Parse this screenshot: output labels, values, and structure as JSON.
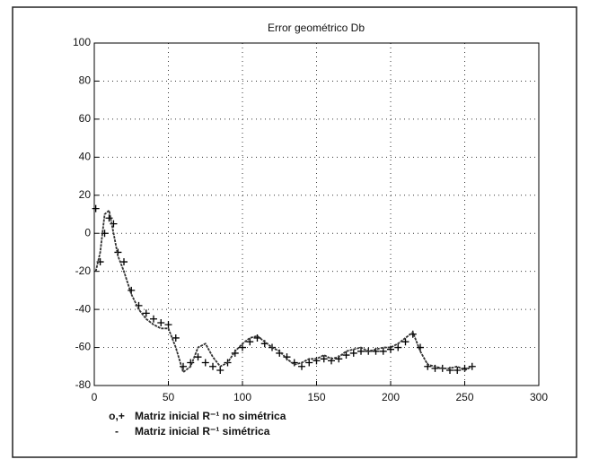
{
  "chart_data": {
    "type": "line",
    "title": "Error geométrico Db",
    "x": [
      1,
      4,
      7,
      10,
      13,
      16,
      20,
      25,
      30,
      35,
      40,
      45,
      50,
      55,
      60,
      65,
      70,
      75,
      80,
      85,
      90,
      95,
      100,
      105,
      110,
      115,
      120,
      125,
      130,
      135,
      140,
      145,
      150,
      155,
      160,
      165,
      170,
      175,
      180,
      185,
      190,
      195,
      200,
      205,
      210,
      215,
      220,
      225,
      230,
      235,
      240,
      245,
      250,
      255
    ],
    "series": [
      {
        "name": "Matriz inicial R⁻¹ no simétrica",
        "legend_symbol": "o,+",
        "marker": "+",
        "color": "#000000",
        "values": [
          13,
          -15,
          0,
          8,
          5,
          -10,
          -15,
          -30,
          -38,
          -42,
          -45,
          -47,
          -48,
          -55,
          -70,
          -68,
          -65,
          -68,
          -70,
          -72,
          -68,
          -63,
          -60,
          -57,
          -55,
          -58,
          -60,
          -63,
          -65,
          -68,
          -70,
          -68,
          -67,
          -66,
          -67,
          -66,
          -64,
          -63,
          -62,
          -62,
          -62,
          -62,
          -61,
          -60,
          -57,
          -53,
          -60,
          -70,
          -71,
          -71,
          -72,
          -72,
          -71,
          -70
        ]
      },
      {
        "name": "Matriz inicial R⁻¹ simétrica",
        "legend_symbol": "-",
        "marker": "line",
        "color": "#333333",
        "values": [
          -20,
          -10,
          10,
          12,
          0,
          -12,
          -20,
          -32,
          -40,
          -45,
          -48,
          -50,
          -50,
          -60,
          -73,
          -70,
          -60,
          -58,
          -65,
          -70,
          -68,
          -62,
          -58,
          -55,
          -54,
          -57,
          -60,
          -62,
          -66,
          -69,
          -68,
          -66,
          -66,
          -64,
          -66,
          -65,
          -62,
          -61,
          -60,
          -62,
          -61,
          -60,
          -60,
          -58,
          -55,
          -52,
          -62,
          -69,
          -70,
          -71,
          -71,
          -70,
          -72,
          -70
        ]
      }
    ],
    "xlim": [
      0,
      300
    ],
    "xticks": [
      0,
      50,
      100,
      150,
      200,
      250,
      300
    ],
    "ylim": [
      -80,
      100
    ],
    "yticks": [
      -80,
      -60,
      -40,
      -20,
      0,
      20,
      40,
      60,
      80,
      100
    ],
    "grid": true
  }
}
